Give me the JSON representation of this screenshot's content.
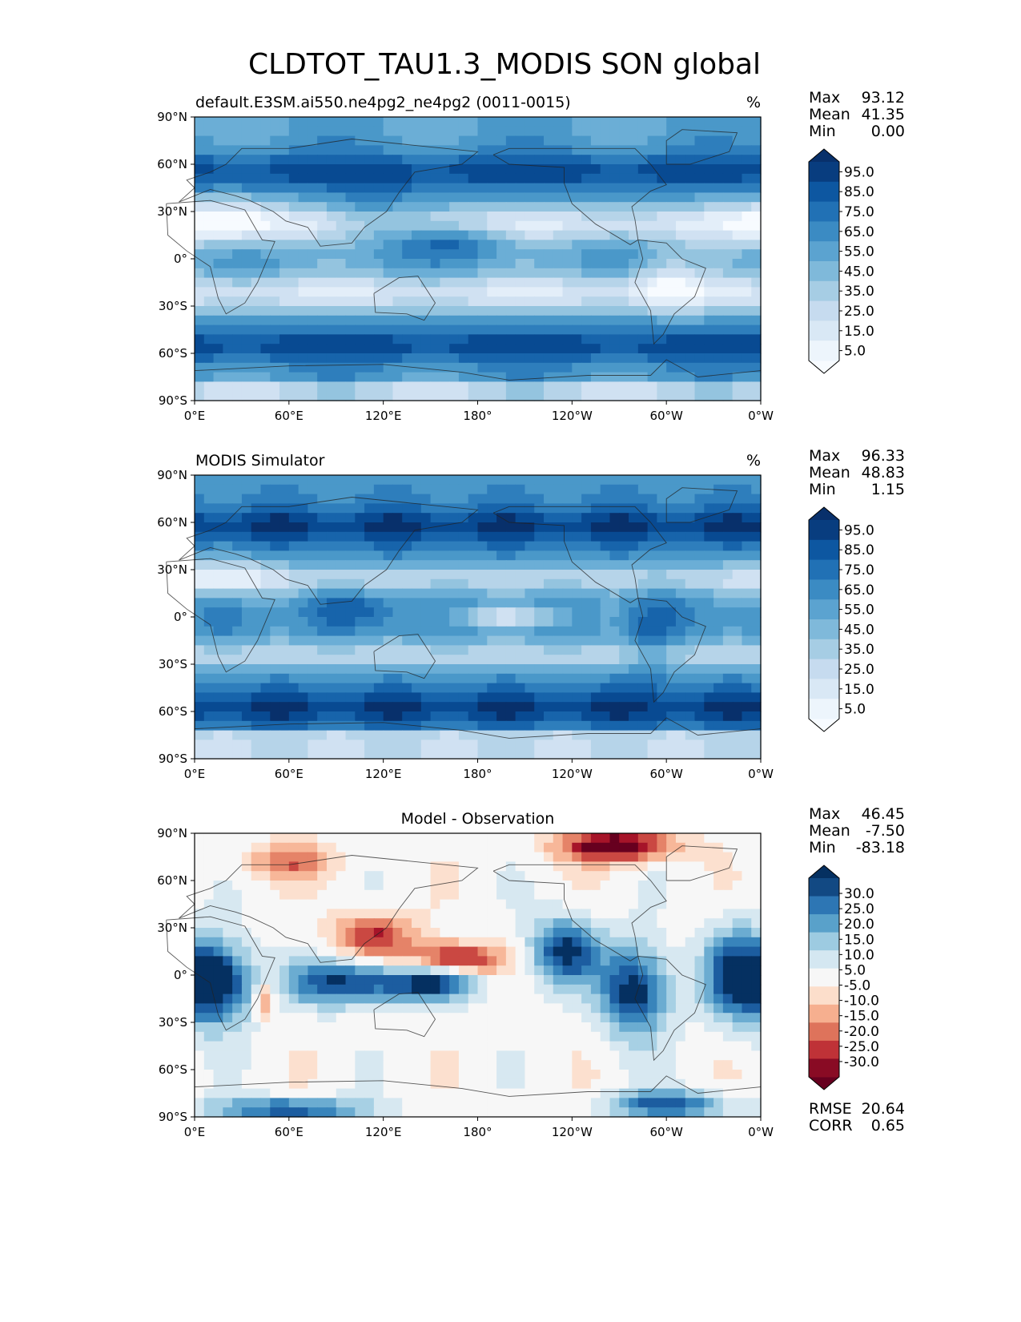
{
  "figure_title": "CLDTOT_TAU1.3_MODIS SON global",
  "colors": {
    "seq": [
      "#f7fbff",
      "#deebf7",
      "#c6dbef",
      "#9ecae1",
      "#6baed6",
      "#4292c6",
      "#2171b5",
      "#08519c",
      "#08306b"
    ],
    "div": [
      "#67001f",
      "#b2182b",
      "#d6604d",
      "#f4a582",
      "#fddbc7",
      "#f7f7f7",
      "#d1e5f0",
      "#92c5de",
      "#4393c3",
      "#2166ac",
      "#053061"
    ]
  },
  "axes": {
    "x_ticks": [
      "0°E",
      "60°E",
      "120°E",
      "180°",
      "120°W",
      "60°W",
      "0°W"
    ],
    "y_ticks": [
      "90°N",
      "60°N",
      "30°N",
      "0°",
      "30°S",
      "60°S",
      "90°S"
    ]
  },
  "chart_data": [
    {
      "type": "heatmap",
      "title_left": "default.E3SM.ai550.ne4pg2_ne4pg2 (0011-0015)",
      "title_right": "%",
      "xlim": [
        0,
        360
      ],
      "ylim": [
        -90,
        90
      ],
      "stats": {
        "max_label": "Max",
        "max": "93.12",
        "mean_label": "Mean",
        "mean": "41.35",
        "min_label": "Min",
        "min": "0.00"
      },
      "colorbar": {
        "ticks": [
          "95.0",
          "85.0",
          "75.0",
          "65.0",
          "55.0",
          "45.0",
          "35.0",
          "25.0",
          "15.0",
          "5.0"
        ]
      }
    },
    {
      "type": "heatmap",
      "title_left": "MODIS Simulator",
      "title_right": "%",
      "xlim": [
        0,
        360
      ],
      "ylim": [
        -90,
        90
      ],
      "stats": {
        "max_label": "Max",
        "max": "96.33",
        "mean_label": "Mean",
        "mean": "48.83",
        "min_label": "Min",
        "min": "1.15"
      },
      "colorbar": {
        "ticks": [
          "95.0",
          "85.0",
          "75.0",
          "65.0",
          "55.0",
          "45.0",
          "35.0",
          "25.0",
          "15.0",
          "5.0"
        ]
      }
    },
    {
      "type": "heatmap",
      "title_center": "Model - Observation",
      "xlim": [
        0,
        360
      ],
      "ylim": [
        -90,
        90
      ],
      "stats": {
        "max_label": "Max",
        "max": "46.45",
        "mean_label": "Mean",
        "mean": "-7.50",
        "min_label": "Min",
        "min": "-83.18",
        "rmse_label": "RMSE",
        "rmse": "20.64",
        "corr_label": "CORR",
        "corr": "0.65"
      },
      "colorbar": {
        "ticks": [
          "30.0",
          "25.0",
          "20.0",
          "15.0",
          "10.0",
          "5.0",
          "-5.0",
          "-10.0",
          "-15.0",
          "-20.0",
          "-25.0",
          "-30.0"
        ]
      }
    }
  ]
}
